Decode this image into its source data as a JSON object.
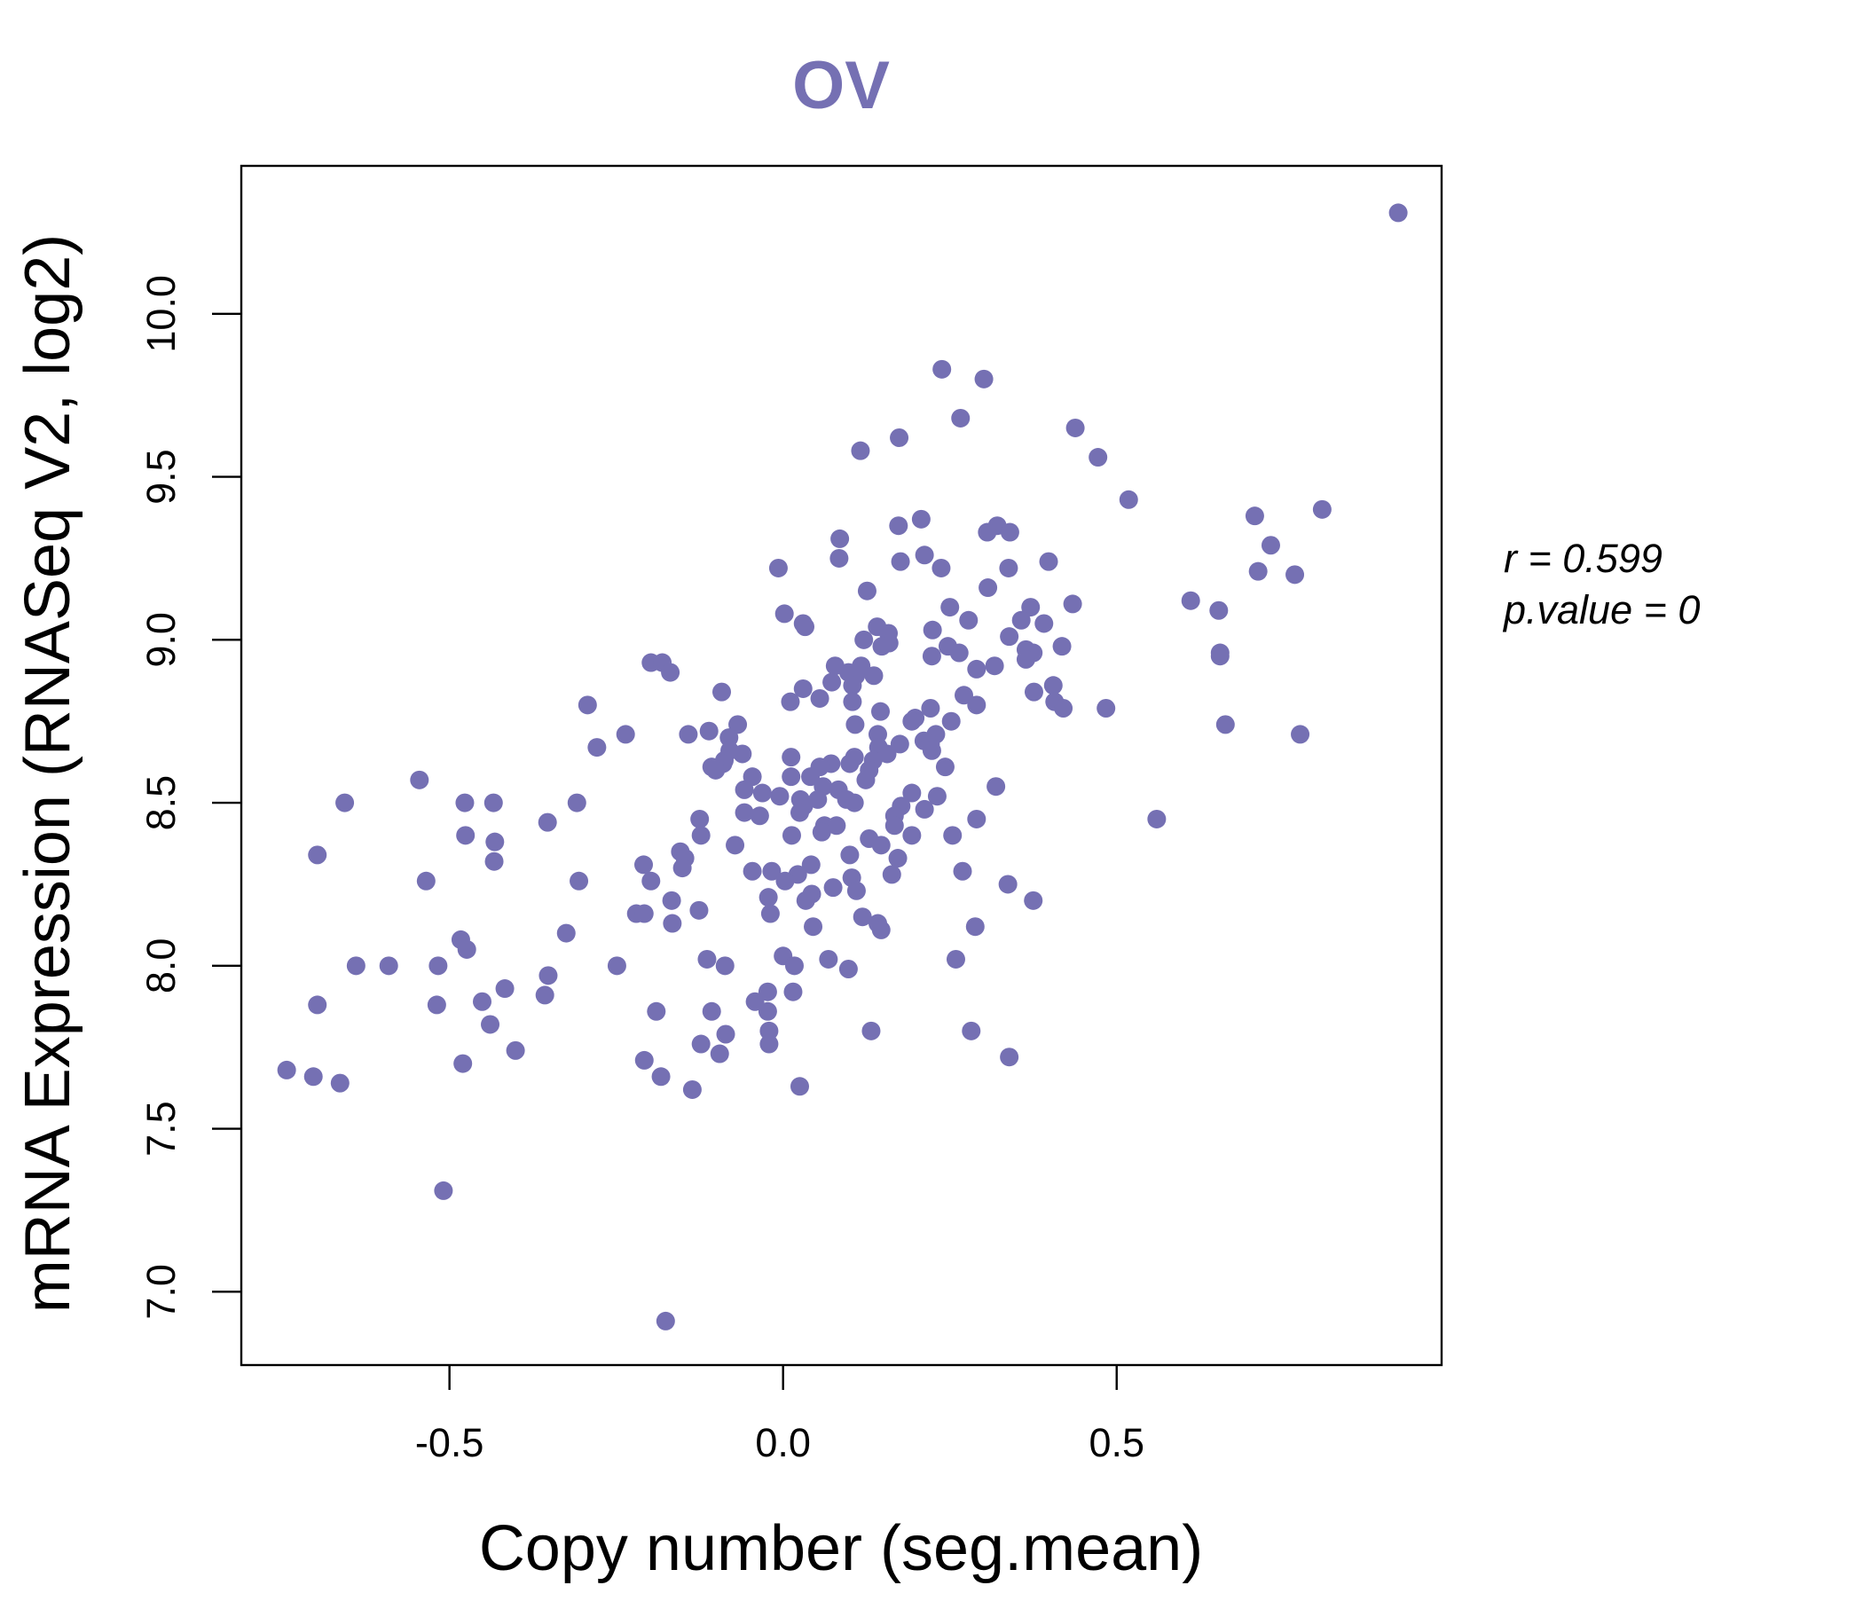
{
  "chart_data": {
    "type": "scatter",
    "title": "OV",
    "xlabel": "Copy number (seg.mean)",
    "ylabel": "mRNA Expression (RNASeq V2, log2)",
    "xlim": [
      -0.812,
      0.987
    ],
    "ylim": [
      6.775,
      10.454
    ],
    "x_ticks": [
      -0.5,
      0.0,
      0.5
    ],
    "x_tick_labels": [
      "-0.5",
      "0.0",
      "0.5"
    ],
    "y_ticks": [
      7.0,
      7.5,
      8.0,
      8.5,
      9.0,
      9.5,
      10.0
    ],
    "y_tick_labels": [
      "7.0",
      "7.5",
      "8.0",
      "8.5",
      "9.0",
      "9.5",
      "10.0"
    ],
    "grid": false,
    "point_color": "#7570b3",
    "annotations": {
      "r_label": "r = 0.599",
      "p_label": "p.value = 0"
    },
    "points": [
      [
        0.922,
        10.31
      ],
      [
        0.238,
        9.83
      ],
      [
        0.301,
        9.8
      ],
      [
        0.266,
        9.68
      ],
      [
        0.438,
        9.65
      ],
      [
        0.174,
        9.62
      ],
      [
        0.116,
        9.58
      ],
      [
        0.472,
        9.56
      ],
      [
        0.518,
        9.43
      ],
      [
        0.808,
        9.4
      ],
      [
        0.707,
        9.38
      ],
      [
        0.207,
        9.37
      ],
      [
        0.173,
        9.35
      ],
      [
        0.321,
        9.35
      ],
      [
        0.34,
        9.33
      ],
      [
        0.306,
        9.33
      ],
      [
        0.085,
        9.31
      ],
      [
        0.731,
        9.29
      ],
      [
        0.212,
        9.26
      ],
      [
        0.084,
        9.25
      ],
      [
        0.398,
        9.24
      ],
      [
        0.176,
        9.24
      ],
      [
        -0.007,
        9.22
      ],
      [
        0.338,
        9.22
      ],
      [
        0.237,
        9.22
      ],
      [
        0.712,
        9.21
      ],
      [
        0.767,
        9.2
      ],
      [
        0.307,
        9.16
      ],
      [
        0.126,
        9.15
      ],
      [
        0.611,
        9.12
      ],
      [
        0.434,
        9.11
      ],
      [
        0.25,
        9.1
      ],
      [
        0.371,
        9.1
      ],
      [
        0.002,
        9.08
      ],
      [
        0.653,
        9.09
      ],
      [
        0.357,
        9.06
      ],
      [
        0.278,
        9.06
      ],
      [
        0.03,
        9.05
      ],
      [
        0.033,
        9.04
      ],
      [
        0.141,
        9.04
      ],
      [
        0.391,
        9.05
      ],
      [
        0.158,
        9.02
      ],
      [
        0.224,
        9.03
      ],
      [
        0.121,
        9.0
      ],
      [
        0.339,
        9.01
      ],
      [
        0.159,
        8.99
      ],
      [
        0.148,
        8.98
      ],
      [
        0.247,
        8.98
      ],
      [
        0.418,
        8.98
      ],
      [
        0.364,
        8.97
      ],
      [
        0.223,
        8.95
      ],
      [
        0.264,
        8.96
      ],
      [
        0.655,
        8.96
      ],
      [
        0.655,
        8.95
      ],
      [
        0.375,
        8.96
      ],
      [
        0.364,
        8.94
      ],
      [
        -0.198,
        8.93
      ],
      [
        -0.181,
        8.93
      ],
      [
        0.078,
        8.92
      ],
      [
        0.117,
        8.92
      ],
      [
        0.317,
        8.92
      ],
      [
        -0.169,
        8.9
      ],
      [
        0.29,
        8.91
      ],
      [
        0.098,
        8.9
      ],
      [
        0.109,
        8.89
      ],
      [
        0.136,
        8.89
      ],
      [
        0.073,
        8.87
      ],
      [
        0.104,
        8.86
      ],
      [
        0.405,
        8.86
      ],
      [
        -0.092,
        8.84
      ],
      [
        0.03,
        8.85
      ],
      [
        0.376,
        8.84
      ],
      [
        0.271,
        8.83
      ],
      [
        0.104,
        8.81
      ],
      [
        0.055,
        8.82
      ],
      [
        0.407,
        8.81
      ],
      [
        0.011,
        8.81
      ],
      [
        0.29,
        8.8
      ],
      [
        -0.293,
        8.8
      ],
      [
        0.42,
        8.79
      ],
      [
        0.484,
        8.79
      ],
      [
        0.146,
        8.78
      ],
      [
        0.221,
        8.79
      ],
      [
        0.198,
        8.76
      ],
      [
        0.193,
        8.75
      ],
      [
        0.252,
        8.75
      ],
      [
        0.108,
        8.74
      ],
      [
        0.663,
        8.74
      ],
      [
        -0.068,
        8.74
      ],
      [
        -0.111,
        8.72
      ],
      [
        -0.142,
        8.71
      ],
      [
        -0.236,
        8.71
      ],
      [
        0.142,
        8.71
      ],
      [
        0.229,
        8.71
      ],
      [
        0.775,
        8.71
      ],
      [
        -0.081,
        8.7
      ],
      [
        0.211,
        8.69
      ],
      [
        0.175,
        8.68
      ],
      [
        -0.279,
        8.67
      ],
      [
        0.221,
        8.68
      ],
      [
        0.143,
        8.67
      ],
      [
        0.223,
        8.66
      ],
      [
        -0.08,
        8.66
      ],
      [
        -0.061,
        8.65
      ],
      [
        0.107,
        8.64
      ],
      [
        0.012,
        8.64
      ],
      [
        0.156,
        8.65
      ],
      [
        0.135,
        8.63
      ],
      [
        -0.088,
        8.63
      ],
      [
        -0.09,
        8.62
      ],
      [
        0.072,
        8.62
      ],
      [
        0.1,
        8.62
      ],
      [
        0.055,
        8.61
      ],
      [
        0.243,
        8.61
      ],
      [
        -0.107,
        8.61
      ],
      [
        -0.101,
        8.6
      ],
      [
        0.129,
        8.6
      ],
      [
        0.041,
        8.58
      ],
      [
        -0.046,
        8.58
      ],
      [
        0.012,
        8.58
      ],
      [
        -0.545,
        8.57
      ],
      [
        0.124,
        8.57
      ],
      [
        0.06,
        8.55
      ],
      [
        0.319,
        8.55
      ],
      [
        0.083,
        8.54
      ],
      [
        -0.058,
        8.54
      ],
      [
        0.193,
        8.53
      ],
      [
        -0.031,
        8.53
      ],
      [
        0.231,
        8.52
      ],
      [
        -0.005,
        8.52
      ],
      [
        0.026,
        8.51
      ],
      [
        0.052,
        8.51
      ],
      [
        0.095,
        8.51
      ],
      [
        -0.657,
        8.5
      ],
      [
        -0.477,
        8.5
      ],
      [
        -0.434,
        8.5
      ],
      [
        -0.309,
        8.5
      ],
      [
        0.107,
        8.5
      ],
      [
        0.031,
        8.49
      ],
      [
        0.177,
        8.49
      ],
      [
        -0.058,
        8.47
      ],
      [
        0.212,
        8.48
      ],
      [
        0.025,
        8.47
      ],
      [
        -0.035,
        8.46
      ],
      [
        0.167,
        8.46
      ],
      [
        0.56,
        8.45
      ],
      [
        -0.125,
        8.45
      ],
      [
        0.29,
        8.45
      ],
      [
        -0.353,
        8.44
      ],
      [
        0.062,
        8.43
      ],
      [
        0.08,
        8.43
      ],
      [
        0.167,
        8.43
      ],
      [
        0.058,
        8.41
      ],
      [
        0.013,
        8.4
      ],
      [
        -0.476,
        8.4
      ],
      [
        -0.123,
        8.4
      ],
      [
        0.193,
        8.4
      ],
      [
        0.254,
        8.4
      ],
      [
        0.129,
        8.39
      ],
      [
        -0.432,
        8.38
      ],
      [
        -0.072,
        8.37
      ],
      [
        0.147,
        8.37
      ],
      [
        -0.154,
        8.35
      ],
      [
        0.1,
        8.34
      ],
      [
        -0.698,
        8.34
      ],
      [
        -0.147,
        8.33
      ],
      [
        0.172,
        8.33
      ],
      [
        -0.433,
        8.32
      ],
      [
        -0.209,
        8.31
      ],
      [
        0.042,
        8.31
      ],
      [
        -0.151,
        8.3
      ],
      [
        -0.017,
        8.29
      ],
      [
        -0.046,
        8.29
      ],
      [
        0.269,
        8.29
      ],
      [
        0.163,
        8.28
      ],
      [
        0.022,
        8.28
      ],
      [
        0.003,
        8.26
      ],
      [
        0.103,
        8.27
      ],
      [
        -0.306,
        8.26
      ],
      [
        -0.198,
        8.26
      ],
      [
        -0.535,
        8.26
      ],
      [
        0.337,
        8.25
      ],
      [
        0.075,
        8.24
      ],
      [
        0.11,
        8.23
      ],
      [
        -0.022,
        8.21
      ],
      [
        0.043,
        8.22
      ],
      [
        0.034,
        8.2
      ],
      [
        0.375,
        8.2
      ],
      [
        -0.167,
        8.2
      ],
      [
        -0.22,
        8.16
      ],
      [
        -0.126,
        8.17
      ],
      [
        -0.019,
        8.16
      ],
      [
        -0.208,
        8.16
      ],
      [
        0.119,
        8.15
      ],
      [
        -0.166,
        8.13
      ],
      [
        0.142,
        8.13
      ],
      [
        0.147,
        8.11
      ],
      [
        0.045,
        8.12
      ],
      [
        0.288,
        8.12
      ],
      [
        -0.325,
        8.1
      ],
      [
        -0.483,
        8.08
      ],
      [
        -0.474,
        8.05
      ],
      [
        0.0,
        8.03
      ],
      [
        -0.114,
        8.02
      ],
      [
        0.068,
        8.02
      ],
      [
        0.259,
        8.02
      ],
      [
        -0.64,
        8.0
      ],
      [
        -0.591,
        8.0
      ],
      [
        -0.517,
        8.0
      ],
      [
        -0.087,
        8.0
      ],
      [
        0.017,
        8.0
      ],
      [
        -0.249,
        8.0
      ],
      [
        0.098,
        7.99
      ],
      [
        -0.352,
        7.97
      ],
      [
        -0.417,
        7.93
      ],
      [
        -0.023,
        7.92
      ],
      [
        0.015,
        7.92
      ],
      [
        -0.357,
        7.91
      ],
      [
        -0.451,
        7.89
      ],
      [
        -0.042,
        7.89
      ],
      [
        -0.698,
        7.88
      ],
      [
        -0.519,
        7.88
      ],
      [
        -0.023,
        7.86
      ],
      [
        -0.19,
        7.86
      ],
      [
        -0.107,
        7.86
      ],
      [
        -0.439,
        7.82
      ],
      [
        -0.021,
        7.8
      ],
      [
        0.132,
        7.8
      ],
      [
        0.282,
        7.8
      ],
      [
        -0.086,
        7.79
      ],
      [
        -0.123,
        7.76
      ],
      [
        -0.021,
        7.76
      ],
      [
        -0.401,
        7.74
      ],
      [
        -0.095,
        7.73
      ],
      [
        0.339,
        7.72
      ],
      [
        -0.208,
        7.71
      ],
      [
        -0.48,
        7.7
      ],
      [
        -0.744,
        7.68
      ],
      [
        -0.704,
        7.66
      ],
      [
        -0.183,
        7.66
      ],
      [
        -0.664,
        7.64
      ],
      [
        0.025,
        7.63
      ],
      [
        -0.136,
        7.62
      ],
      [
        -0.509,
        7.31
      ],
      [
        -0.176,
        6.91
      ]
    ]
  }
}
